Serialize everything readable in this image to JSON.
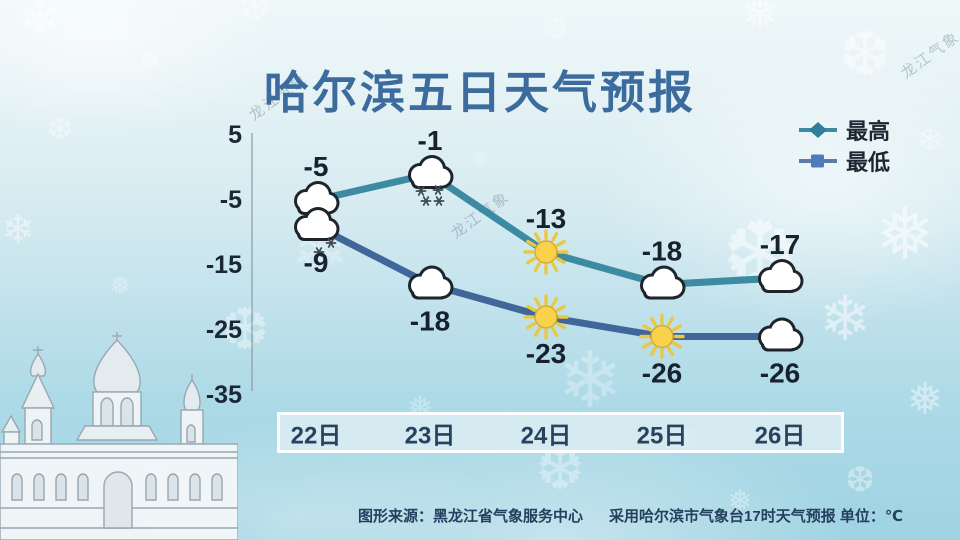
{
  "title": "哈尔滨五日天气预报",
  "legend": {
    "high_label": "最高",
    "low_label": "最低"
  },
  "chart_data": {
    "type": "line",
    "title": "哈尔滨五日天气预报",
    "categories": [
      "22日",
      "23日",
      "24日",
      "25日",
      "26日"
    ],
    "series": [
      {
        "name": "最高",
        "values": [
          -5,
          -1,
          -13,
          -18,
          -17
        ],
        "icons": [
          "cloud",
          "cloud-snow",
          "sun",
          "cloud",
          "cloud"
        ],
        "marker": "diamond"
      },
      {
        "name": "最低",
        "values": [
          -9,
          -18,
          -23,
          -26,
          -26
        ],
        "icons": [
          "cloud-light-snow",
          "cloud",
          "sun",
          "sun",
          "cloud"
        ],
        "marker": "square"
      }
    ],
    "y_ticks": [
      5,
      -5,
      -15,
      -25,
      -35
    ],
    "ylim": [
      -35,
      5
    ],
    "unit": "℃",
    "grid": false,
    "legend_position": "top-right"
  },
  "colors": {
    "title_text": "#3c6c9d",
    "high_line": "#3d8ba3",
    "high_marker": "#2f7f9b",
    "low_line": "#41669a",
    "low_marker": "#4c7cbe",
    "temp_label": "#18222e",
    "tick_label": "#1b2735",
    "day_label": "#26435f",
    "axis_line": "#8a9aa6",
    "sun_fill": "#f8d24a",
    "cloud_outline": "#1d242b"
  },
  "footer": {
    "source": "图形来源：黑龙江省气象服务中心",
    "note": "采用哈尔滨市气象台17时天气预报 单位：℃"
  },
  "watermark": "龙江气象"
}
